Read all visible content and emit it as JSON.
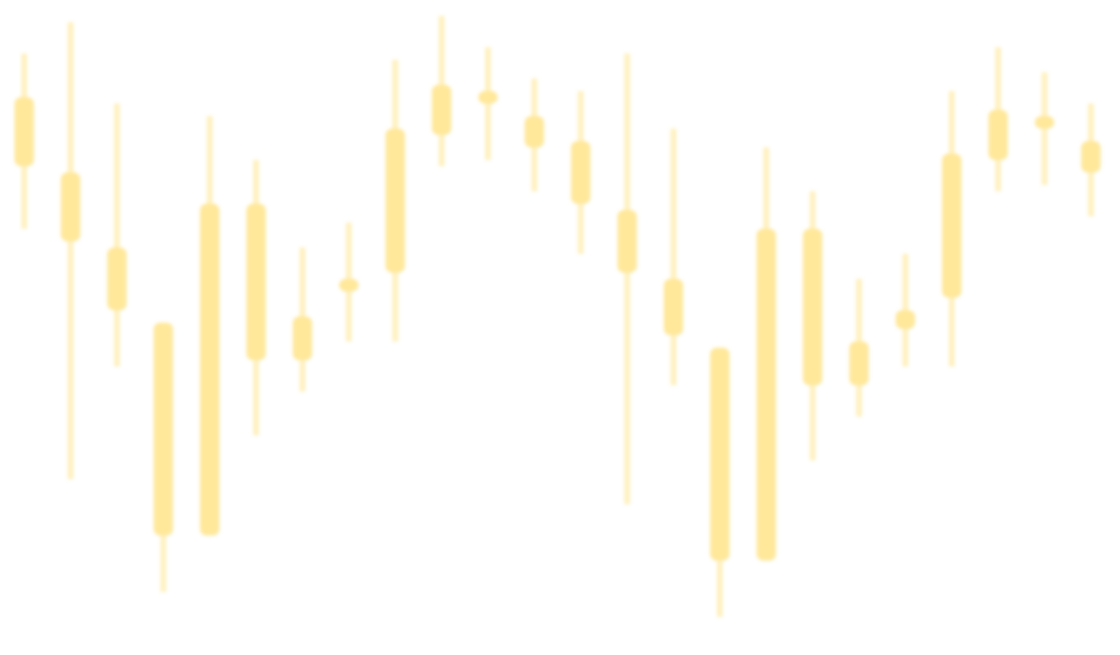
{
  "chart_data": {
    "type": "candlestick",
    "title": "",
    "xlabel": "",
    "ylabel": "",
    "axes_visible": false,
    "grid": false,
    "legend": "none",
    "ylim": [
      0,
      100
    ],
    "colors": {
      "body": "#ffe89a",
      "wick": "#fff0bd",
      "background": "#ffffff"
    },
    "candles": [
      {
        "open": 86,
        "close": 75,
        "high": 93,
        "low": 65
      },
      {
        "open": 74,
        "close": 63,
        "high": 98,
        "low": 25
      },
      {
        "open": 62,
        "close": 52,
        "high": 85,
        "low": 43
      },
      {
        "open": 50,
        "close": 16,
        "high": 50,
        "low": 7
      },
      {
        "open": 69,
        "close": 16,
        "high": 83,
        "low": 16
      },
      {
        "open": 69,
        "close": 44,
        "high": 76,
        "low": 32
      },
      {
        "open": 51,
        "close": 44,
        "high": 62,
        "low": 39
      },
      {
        "open": 57,
        "close": 55,
        "high": 66,
        "low": 47
      },
      {
        "open": 81,
        "close": 58,
        "high": 92,
        "low": 47
      },
      {
        "open": 88,
        "close": 80,
        "high": 99,
        "low": 75
      },
      {
        "open": 87,
        "close": 85,
        "high": 94,
        "low": 76
      },
      {
        "open": 83,
        "close": 78,
        "high": 89,
        "low": 71
      },
      {
        "open": 79,
        "close": 69,
        "high": 87,
        "low": 61
      },
      {
        "open": 68,
        "close": 58,
        "high": 93,
        "low": 21
      },
      {
        "open": 57,
        "close": 48,
        "high": 81,
        "low": 40
      },
      {
        "open": 46,
        "close": 12,
        "high": 46,
        "low": 3
      },
      {
        "open": 65,
        "close": 12,
        "high": 78,
        "low": 12
      },
      {
        "open": 65,
        "close": 40,
        "high": 71,
        "low": 28
      },
      {
        "open": 47,
        "close": 40,
        "high": 57,
        "low": 35
      },
      {
        "open": 52,
        "close": 49,
        "high": 61,
        "low": 43
      },
      {
        "open": 77,
        "close": 54,
        "high": 87,
        "low": 43
      },
      {
        "open": 84,
        "close": 76,
        "high": 94,
        "low": 71
      },
      {
        "open": 83,
        "close": 81,
        "high": 90,
        "low": 72
      },
      {
        "open": 79,
        "close": 74,
        "high": 85,
        "low": 67
      }
    ]
  }
}
